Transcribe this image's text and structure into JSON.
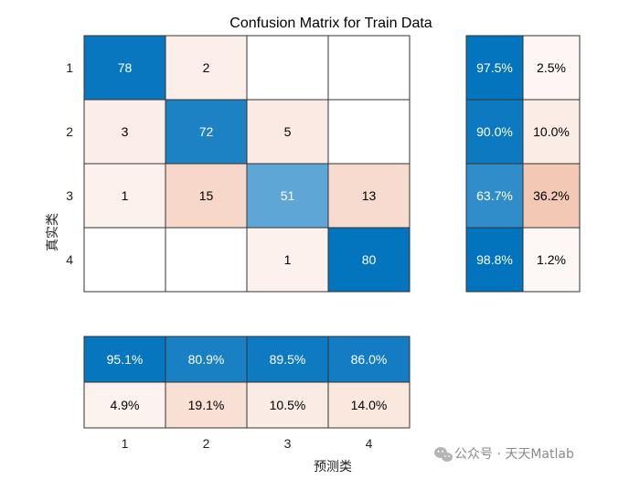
{
  "chart_data": {
    "type": "heatmap",
    "title": "Confusion Matrix for Train Data",
    "xlabel": "预测类",
    "ylabel": "真实类",
    "class_labels": [
      "1",
      "2",
      "3",
      "4"
    ],
    "matrix": [
      [
        78,
        2,
        0,
        0
      ],
      [
        3,
        72,
        5,
        0
      ],
      [
        1,
        15,
        51,
        13
      ],
      [
        0,
        0,
        1,
        80
      ]
    ],
    "row_summary": [
      [
        "97.5%",
        "2.5%"
      ],
      [
        "90.0%",
        "10.0%"
      ],
      [
        "63.7%",
        "36.2%"
      ],
      [
        "98.8%",
        "1.2%"
      ]
    ],
    "row_summary_values": [
      [
        97.5,
        2.5
      ],
      [
        90.0,
        10.0
      ],
      [
        63.7,
        36.2
      ],
      [
        98.8,
        1.2
      ]
    ],
    "column_summary": [
      [
        "95.1%",
        "80.9%",
        "89.5%",
        "86.0%"
      ],
      [
        "4.9%",
        "19.1%",
        "10.5%",
        "14.0%"
      ]
    ],
    "column_summary_values": [
      [
        95.1,
        80.9,
        89.5,
        86.0
      ],
      [
        4.9,
        19.1,
        10.5,
        14.0
      ]
    ]
  },
  "watermark": {
    "text": "公众号 · 天天Matlab",
    "icon": "wechat-icon"
  },
  "colors": {
    "blue": "#0072bd",
    "orange": "#d95319"
  }
}
